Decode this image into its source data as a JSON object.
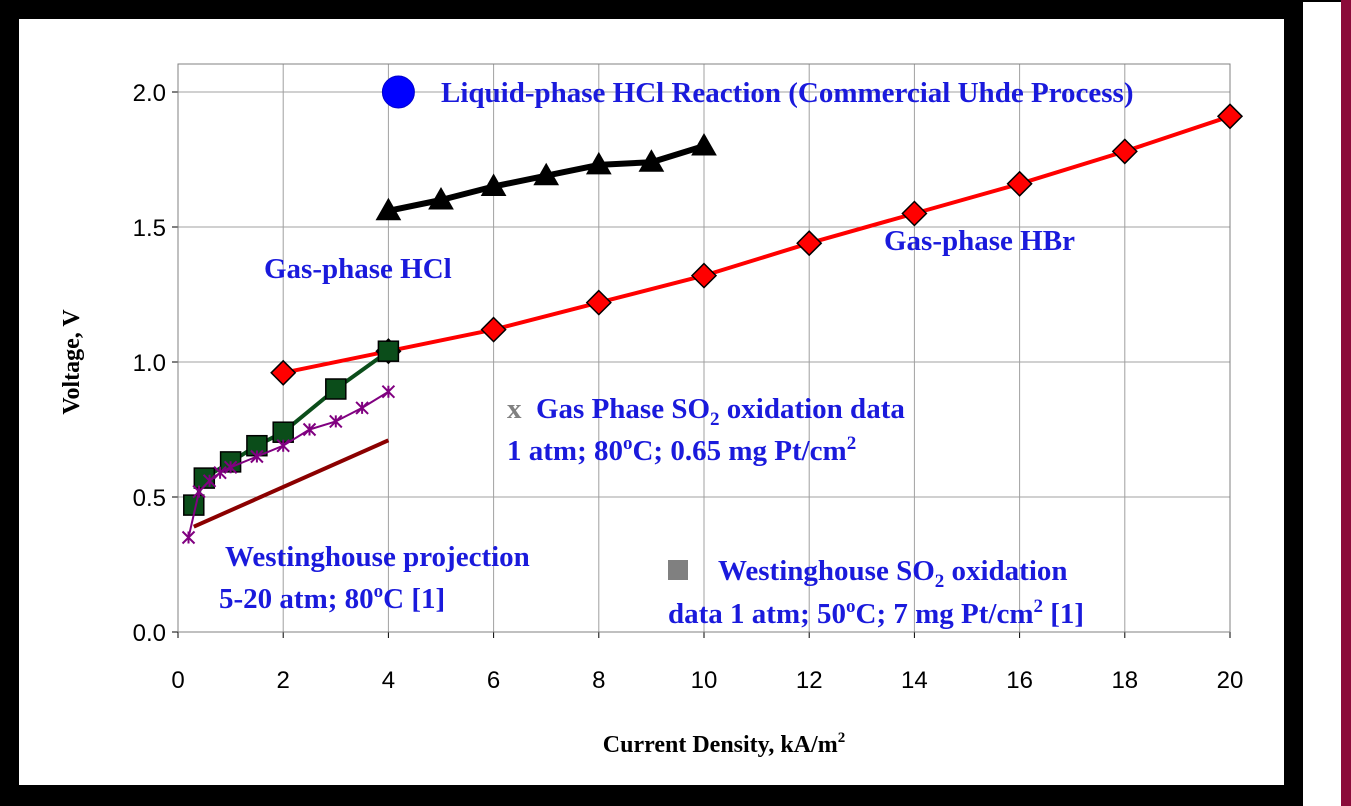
{
  "chart_data": {
    "type": "line",
    "xlabel": "Current Density,  kA/m",
    "xlabel_sup": "2",
    "ylabel": "Voltage, V",
    "xlim": [
      0,
      20
    ],
    "ylim": [
      0,
      2.0
    ],
    "x_ticks": [
      "0",
      "2",
      "4",
      "6",
      "8",
      "10",
      "12",
      "14",
      "16",
      "18",
      "20"
    ],
    "y_ticks": [
      "0.0",
      "0.5",
      "1.0",
      "1.5",
      "2.0"
    ],
    "grid": true,
    "series": [
      {
        "name": "Gas-phase HBr",
        "color": "#ff0000",
        "marker": "diamond",
        "x": [
          2,
          4,
          6,
          8,
          10,
          12,
          14,
          16,
          18,
          20
        ],
        "y": [
          0.96,
          1.04,
          1.12,
          1.22,
          1.32,
          1.44,
          1.55,
          1.66,
          1.78,
          1.91
        ]
      },
      {
        "name": "Gas-phase HCl",
        "color": "#000000",
        "marker": "triangle",
        "x": [
          4,
          5,
          6,
          7,
          8,
          9,
          10
        ],
        "y": [
          1.56,
          1.6,
          1.65,
          1.69,
          1.73,
          1.74,
          1.8
        ]
      },
      {
        "name": "Westinghouse SO2 oxidation data 1 atm; 50oC; 7 mg Pt/cm2 [1]",
        "color": "#0b4d1a",
        "marker": "square",
        "x": [
          0.3,
          0.5,
          1.0,
          1.5,
          2.0,
          3.0,
          4.0
        ],
        "y": [
          0.47,
          0.57,
          0.63,
          0.69,
          0.74,
          0.9,
          1.04
        ]
      },
      {
        "name": "Gas Phase SO2 oxidation data 1 atm; 80oC; 0.65 mg Pt/cm2",
        "color": "#800080",
        "marker": "asterisk",
        "x": [
          0.2,
          0.4,
          0.6,
          0.8,
          1.0,
          1.5,
          2.0,
          2.5,
          3.0,
          3.5,
          4.0
        ],
        "y": [
          0.35,
          0.52,
          0.56,
          0.59,
          0.61,
          0.65,
          0.69,
          0.75,
          0.78,
          0.83,
          0.89
        ]
      },
      {
        "name": "Westinghouse projection 5-20 atm; 80oC [1]",
        "color": "#8b0000",
        "marker": "none",
        "x": [
          0.3,
          4.0
        ],
        "y": [
          0.39,
          0.71
        ]
      },
      {
        "name": "Liquid-phase HCl Reaction (Commercial Uhde Process)",
        "color": "#0000ff",
        "marker": "circle",
        "x": [
          4.0
        ],
        "y": [
          2.0
        ]
      }
    ],
    "annotations": {
      "liquid_hcl": "Liquid-phase HCl Reaction (Commercial Uhde Process)",
      "gas_hcl": "Gas-phase HCl",
      "gas_hbr": "Gas-phase HBr",
      "so2_marker": "x",
      "so2_line1_a": "Gas Phase SO",
      "so2_line1_sub": "2",
      "so2_line1_b": " oxidation data",
      "so2_line2_a": "1 atm; 80",
      "so2_line2_sup": "o",
      "so2_line2_b": "C; 0.65 mg Pt/cm",
      "so2_line2_sup2": "2",
      "wproj_line1": "Westinghouse projection",
      "wproj_line2_a": "5-20 atm; 80",
      "wproj_line2_sup": "o",
      "wproj_line2_b": "C [1]",
      "wdata_line1_a": "Westinghouse SO",
      "wdata_line1_sub": "2",
      "wdata_line1_b": " oxidation",
      "wdata_line2_a": "data 1 atm; 50",
      "wdata_line2_sup": "o",
      "wdata_line2_b": "C; 7 mg Pt/cm",
      "wdata_line2_sup2": "2",
      "wdata_line2_c": " [1]"
    }
  }
}
